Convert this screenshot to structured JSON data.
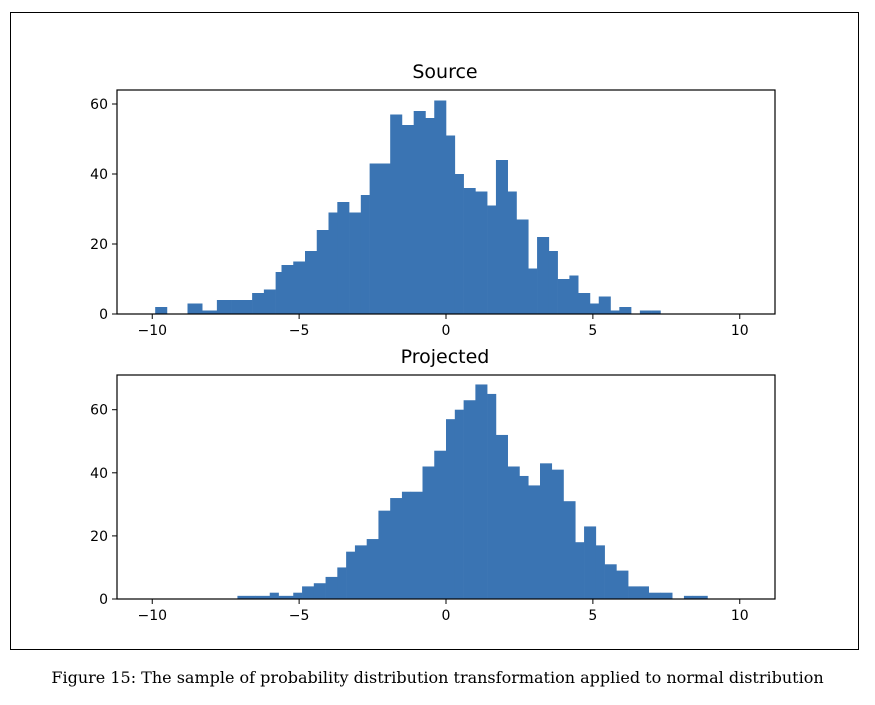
{
  "caption": "Figure 15: The sample of probability distribution transformation applied to normal distribution",
  "colors": {
    "bar": "#3a74b3",
    "axis": "#000000",
    "background": "#ffffff"
  },
  "chart_data": [
    {
      "type": "bar",
      "title": "Source",
      "xlim": [
        -11.2,
        11.2
      ],
      "ylim": [
        0,
        64
      ],
      "xticks": [
        -10,
        -5,
        0,
        5,
        10
      ],
      "xtick_labels": [
        "−10",
        "−5",
        "0",
        "5",
        "10"
      ],
      "yticks": [
        0,
        20,
        40,
        60
      ],
      "ytick_labels": [
        "0",
        "20",
        "40",
        "60"
      ],
      "bin_edges": [
        -9.9,
        -9.5,
        -8.8,
        -8.3,
        -7.8,
        -7.3,
        -6.6,
        -6.2,
        -5.8,
        -5.6,
        -5.2,
        -4.8,
        -4.4,
        -4.0,
        -3.7,
        -3.3,
        -2.9,
        -2.6,
        -2.2,
        -1.9,
        -1.5,
        -1.1,
        -0.7,
        -0.4,
        0.0,
        0.3,
        0.6,
        1.0,
        1.4,
        1.7,
        2.1,
        2.4,
        2.8,
        3.1,
        3.5,
        3.8,
        4.2,
        4.5,
        4.9,
        5.2,
        5.6,
        5.9,
        6.3,
        6.6,
        7.0,
        7.3,
        7.7,
        8.1,
        8.4,
        9.0
      ],
      "values": [
        2,
        0,
        3,
        1,
        4,
        4,
        6,
        7,
        12,
        14,
        15,
        18,
        24,
        29,
        32,
        29,
        34,
        43,
        43,
        57,
        54,
        58,
        56,
        61,
        51,
        40,
        36,
        35,
        31,
        44,
        35,
        27,
        13,
        22,
        18,
        10,
        11,
        6,
        3,
        5,
        1,
        2,
        0,
        1,
        1,
        0,
        0,
        0,
        0
      ]
    },
    {
      "type": "bar",
      "title": "Projected",
      "xlim": [
        -11.2,
        11.2
      ],
      "ylim": [
        0,
        71
      ],
      "xticks": [
        -10,
        -5,
        0,
        5,
        10
      ],
      "xtick_labels": [
        "−10",
        "−5",
        "0",
        "5",
        "10"
      ],
      "yticks": [
        0,
        20,
        40,
        60
      ],
      "ytick_labels": [
        "0",
        "20",
        "40",
        "60"
      ],
      "bin_edges": [
        -7.1,
        -6.5,
        -6.0,
        -5.7,
        -5.2,
        -4.9,
        -4.5,
        -4.1,
        -3.7,
        -3.4,
        -3.1,
        -2.7,
        -2.3,
        -1.9,
        -1.5,
        -1.2,
        -0.8,
        -0.4,
        0.0,
        0.3,
        0.6,
        1.0,
        1.4,
        1.7,
        2.1,
        2.5,
        2.8,
        3.2,
        3.6,
        4.0,
        4.4,
        4.7,
        5.1,
        5.4,
        5.8,
        6.2,
        6.6,
        6.9,
        7.3,
        7.7,
        8.1,
        8.4,
        8.9,
        9.3,
        9.7,
        10.2
      ],
      "values": [
        1,
        1,
        2,
        1,
        2,
        4,
        5,
        7,
        10,
        15,
        17,
        19,
        28,
        32,
        34,
        34,
        42,
        47,
        57,
        60,
        63,
        68,
        65,
        52,
        42,
        39,
        36,
        43,
        41,
        31,
        18,
        23,
        17,
        11,
        9,
        4,
        4,
        2,
        2,
        0,
        1,
        1,
        0,
        0,
        0
      ]
    }
  ]
}
